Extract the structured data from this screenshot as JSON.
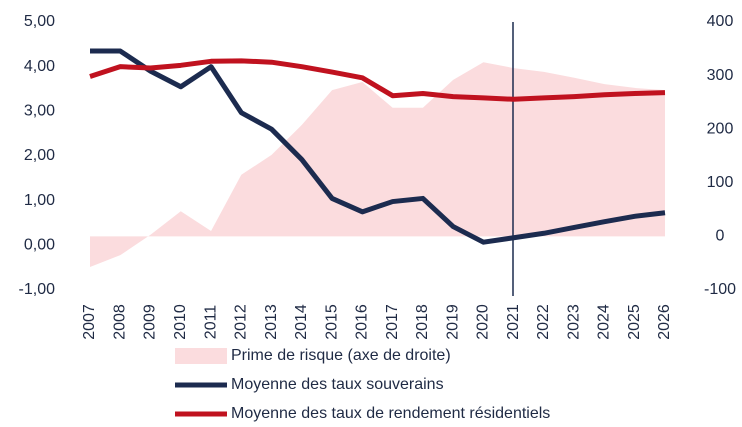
{
  "chart_data": {
    "type": "line",
    "categories": [
      "2007",
      "2008",
      "2009",
      "2010",
      "2011",
      "2012",
      "2013",
      "2014",
      "2015",
      "2016",
      "2017",
      "2018",
      "2019",
      "2020",
      "2021",
      "2022",
      "2023",
      "2024",
      "2025",
      "2026"
    ],
    "series": [
      {
        "name": "Prime de risque (axe de droite)",
        "type": "area",
        "axis": "y2",
        "color": "#fbdcde",
        "values": [
          -57,
          -35,
          3,
          47,
          10,
          115,
          152,
          208,
          273,
          288,
          240,
          240,
          292,
          325,
          314,
          307,
          296,
          284,
          277,
          273
        ]
      },
      {
        "name": "Moyenne des taux souverains",
        "color": "#1c2b4f",
        "values": [
          4.35,
          4.35,
          3.9,
          3.55,
          4.0,
          2.97,
          2.6,
          1.92,
          1.05,
          0.75,
          0.98,
          1.05,
          0.42,
          0.07,
          0.17,
          0.27,
          0.4,
          0.53,
          0.65,
          0.73
        ]
      },
      {
        "name": "Moyenne des taux de rendement résidentiels",
        "color": "#c0121f",
        "values": [
          3.78,
          4.0,
          3.97,
          4.03,
          4.12,
          4.13,
          4.1,
          4.0,
          3.88,
          3.75,
          3.35,
          3.4,
          3.33,
          3.3,
          3.27,
          3.3,
          3.33,
          3.37,
          3.4,
          3.42
        ]
      }
    ],
    "ylim": [
      -1,
      5
    ],
    "yticks": [
      {
        "value": -1,
        "label": "-1,00"
      },
      {
        "value": 0,
        "label": "0,00"
      },
      {
        "value": 1,
        "label": "1,00"
      },
      {
        "value": 2,
        "label": "2,00"
      },
      {
        "value": 3,
        "label": "3,00"
      },
      {
        "value": 4,
        "label": "4,00"
      },
      {
        "value": 5,
        "label": "5,00"
      }
    ],
    "y2lim": [
      -100,
      400
    ],
    "y2ticks": [
      -100,
      0,
      100,
      200,
      300,
      400
    ]
  }
}
